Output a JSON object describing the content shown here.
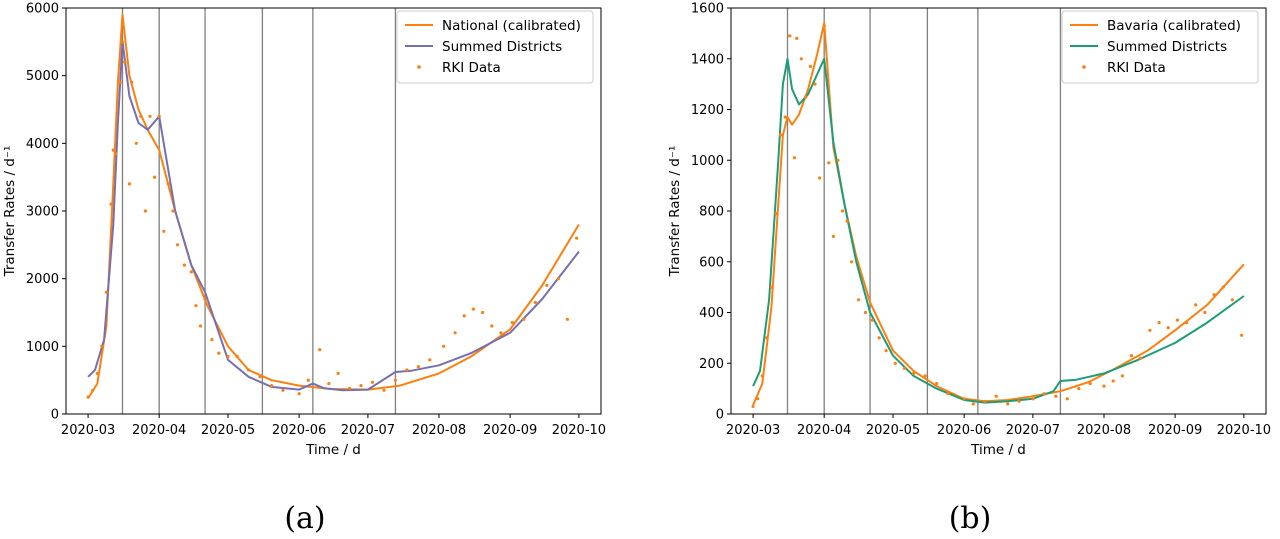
{
  "chart_data": [
    {
      "type": "line",
      "subfigure_label": "(a)",
      "xlabel": "Time / d",
      "ylabel": "Transfer Rates / d⁻¹",
      "xlim": [
        "2020-03-01",
        "2020-10-01"
      ],
      "ylim": [
        0,
        6000
      ],
      "x_ticks": [
        "2020-03-01",
        "2020-04-01",
        "2020-05-01",
        "2020-06-01",
        "2020-07-01",
        "2020-08-01",
        "2020-09-01",
        "2020-10-01"
      ],
      "x_tick_labels": [
        "2020-03",
        "2020-04",
        "2020-05",
        "2020-06",
        "2020-07",
        "2020-08",
        "2020-09",
        "2020-10"
      ],
      "y_ticks": [
        0,
        1000,
        2000,
        3000,
        4000,
        5000,
        6000
      ],
      "y_tick_labels": [
        "0",
        "1000",
        "2000",
        "3000",
        "4000",
        "5000",
        "6000"
      ],
      "vertical_lines": [
        "2020-03-16",
        "2020-04-01",
        "2020-04-21",
        "2020-05-16",
        "2020-06-07",
        "2020-07-13"
      ],
      "legend_position": "top-right",
      "series": [
        {
          "name": "National (calibrated)",
          "kind": "line",
          "color": "#ff7f0e",
          "x": [
            "2020-03-01",
            "2020-03-05",
            "2020-03-09",
            "2020-03-12",
            "2020-03-14",
            "2020-03-16",
            "2020-03-19",
            "2020-03-23",
            "2020-03-27",
            "2020-04-01",
            "2020-04-08",
            "2020-04-15",
            "2020-04-22",
            "2020-05-01",
            "2020-05-10",
            "2020-05-20",
            "2020-06-01",
            "2020-06-15",
            "2020-07-01",
            "2020-07-15",
            "2020-08-01",
            "2020-08-15",
            "2020-09-01",
            "2020-09-15",
            "2020-10-01"
          ],
          "y": [
            230,
            450,
            1300,
            3400,
            4900,
            5900,
            5000,
            4500,
            4200,
            3900,
            3000,
            2200,
            1600,
            1000,
            650,
            500,
            420,
            370,
            360,
            420,
            600,
            850,
            1250,
            1900,
            2800
          ]
        },
        {
          "name": "Summed Districts",
          "kind": "line",
          "color": "#7570b3",
          "x": [
            "2020-03-01",
            "2020-03-04",
            "2020-03-08",
            "2020-03-12",
            "2020-03-14",
            "2020-03-16",
            "2020-03-19",
            "2020-03-23",
            "2020-03-27",
            "2020-04-01",
            "2020-04-08",
            "2020-04-15",
            "2020-04-21",
            "2020-05-01",
            "2020-05-10",
            "2020-05-20",
            "2020-06-01",
            "2020-06-07",
            "2020-06-12",
            "2020-06-20",
            "2020-07-01",
            "2020-07-13",
            "2020-07-20",
            "2020-08-01",
            "2020-08-15",
            "2020-09-01",
            "2020-09-15",
            "2020-10-01"
          ],
          "y": [
            550,
            650,
            1100,
            2800,
            4300,
            5500,
            4700,
            4300,
            4200,
            4400,
            3000,
            2200,
            1800,
            800,
            550,
            400,
            360,
            450,
            380,
            350,
            360,
            620,
            640,
            720,
            900,
            1200,
            1700,
            2400
          ]
        },
        {
          "name": "RKI Data",
          "kind": "scatter",
          "color": "#ff7f0e",
          "x": [
            "2020-03-01",
            "2020-03-03",
            "2020-03-05",
            "2020-03-07",
            "2020-03-09",
            "2020-03-11",
            "2020-03-12",
            "2020-03-13",
            "2020-03-15",
            "2020-03-16",
            "2020-03-17",
            "2020-03-19",
            "2020-03-20",
            "2020-03-22",
            "2020-03-24",
            "2020-03-26",
            "2020-03-28",
            "2020-03-30",
            "2020-04-01",
            "2020-04-03",
            "2020-04-05",
            "2020-04-07",
            "2020-04-09",
            "2020-04-12",
            "2020-04-15",
            "2020-04-17",
            "2020-04-19",
            "2020-04-21",
            "2020-04-24",
            "2020-04-27",
            "2020-05-01",
            "2020-05-05",
            "2020-05-10",
            "2020-05-15",
            "2020-05-20",
            "2020-05-25",
            "2020-06-01",
            "2020-06-05",
            "2020-06-10",
            "2020-06-14",
            "2020-06-18",
            "2020-06-23",
            "2020-06-28",
            "2020-07-03",
            "2020-07-08",
            "2020-07-13",
            "2020-07-18",
            "2020-07-23",
            "2020-07-28",
            "2020-08-03",
            "2020-08-08",
            "2020-08-12",
            "2020-08-16",
            "2020-08-20",
            "2020-08-24",
            "2020-08-28",
            "2020-09-02",
            "2020-09-07",
            "2020-09-12",
            "2020-09-17",
            "2020-09-22",
            "2020-09-26",
            "2020-09-30"
          ],
          "y": [
            250,
            350,
            600,
            1000,
            1800,
            3100,
            3900,
            3850,
            4900,
            5500,
            5200,
            3400,
            4900,
            4000,
            4400,
            3000,
            4400,
            3500,
            4400,
            2700,
            3400,
            3000,
            2500,
            2200,
            2100,
            1600,
            1300,
            1700,
            1100,
            900,
            850,
            850,
            650,
            550,
            420,
            350,
            300,
            500,
            950,
            450,
            600,
            380,
            420,
            470,
            350,
            500,
            650,
            700,
            800,
            1000,
            1200,
            1450,
            1550,
            1500,
            1300,
            1200,
            1350,
            1400,
            1650,
            1900,
            2000,
            1400,
            2600
          ]
        }
      ]
    },
    {
      "type": "line",
      "subfigure_label": "(b)",
      "xlabel": "Time / d",
      "ylabel": "Transfer Rates / d⁻¹",
      "xlim": [
        "2020-03-01",
        "2020-10-01"
      ],
      "ylim": [
        0,
        1600
      ],
      "x_ticks": [
        "2020-03-01",
        "2020-04-01",
        "2020-05-01",
        "2020-06-01",
        "2020-07-01",
        "2020-08-01",
        "2020-09-01",
        "2020-10-01"
      ],
      "x_tick_labels": [
        "2020-03",
        "2020-04",
        "2020-05",
        "2020-06",
        "2020-07",
        "2020-08",
        "2020-09",
        "2020-10"
      ],
      "y_ticks": [
        0,
        200,
        400,
        600,
        800,
        1000,
        1200,
        1400,
        1600
      ],
      "y_tick_labels": [
        "0",
        "200",
        "400",
        "600",
        "800",
        "1000",
        "1200",
        "1400",
        "1600"
      ],
      "vertical_lines": [
        "2020-03-16",
        "2020-04-01",
        "2020-04-21",
        "2020-05-16",
        "2020-06-07",
        "2020-07-13"
      ],
      "legend_position": "top-right",
      "series": [
        {
          "name": "Bavaria (calibrated)",
          "kind": "line",
          "color": "#ff7f0e",
          "x": [
            "2020-03-01",
            "2020-03-05",
            "2020-03-09",
            "2020-03-12",
            "2020-03-14",
            "2020-03-16",
            "2020-03-18",
            "2020-03-21",
            "2020-03-25",
            "2020-03-29",
            "2020-04-01",
            "2020-04-05",
            "2020-04-10",
            "2020-04-15",
            "2020-04-21",
            "2020-05-01",
            "2020-05-10",
            "2020-05-20",
            "2020-06-01",
            "2020-06-10",
            "2020-06-20",
            "2020-07-01",
            "2020-07-13",
            "2020-07-25",
            "2020-08-05",
            "2020-08-20",
            "2020-09-01",
            "2020-09-15",
            "2020-10-01"
          ],
          "y": [
            35,
            120,
            420,
            830,
            1100,
            1170,
            1140,
            1180,
            1280,
            1420,
            1540,
            1050,
            820,
            620,
            440,
            250,
            170,
            110,
            60,
            50,
            55,
            70,
            90,
            125,
            175,
            250,
            330,
            430,
            590
          ]
        },
        {
          "name": "Summed Districts",
          "kind": "line",
          "color": "#1b9e77",
          "x": [
            "2020-03-01",
            "2020-03-04",
            "2020-03-08",
            "2020-03-12",
            "2020-03-14",
            "2020-03-16",
            "2020-03-18",
            "2020-03-21",
            "2020-03-25",
            "2020-03-29",
            "2020-04-01",
            "2020-04-05",
            "2020-04-10",
            "2020-04-15",
            "2020-04-21",
            "2020-05-01",
            "2020-05-10",
            "2020-05-20",
            "2020-06-01",
            "2020-06-10",
            "2020-06-20",
            "2020-07-01",
            "2020-07-10",
            "2020-07-13",
            "2020-07-20",
            "2020-08-01",
            "2020-08-15",
            "2020-09-01",
            "2020-09-15",
            "2020-10-01"
          ],
          "y": [
            110,
            170,
            450,
            1000,
            1300,
            1400,
            1280,
            1220,
            1260,
            1340,
            1400,
            1070,
            820,
            600,
            400,
            230,
            150,
            100,
            55,
            45,
            50,
            60,
            90,
            130,
            135,
            160,
            210,
            280,
            360,
            465
          ]
        },
        {
          "name": "RKI Data",
          "kind": "scatter",
          "color": "#ff7f0e",
          "x": [
            "2020-03-01",
            "2020-03-03",
            "2020-03-05",
            "2020-03-07",
            "2020-03-09",
            "2020-03-11",
            "2020-03-13",
            "2020-03-15",
            "2020-03-17",
            "2020-03-19",
            "2020-03-20",
            "2020-03-22",
            "2020-03-24",
            "2020-03-26",
            "2020-03-28",
            "2020-03-30",
            "2020-04-01",
            "2020-04-03",
            "2020-04-05",
            "2020-04-07",
            "2020-04-09",
            "2020-04-11",
            "2020-04-13",
            "2020-04-16",
            "2020-04-19",
            "2020-04-22",
            "2020-04-25",
            "2020-04-28",
            "2020-05-02",
            "2020-05-06",
            "2020-05-10",
            "2020-05-15",
            "2020-05-20",
            "2020-05-25",
            "2020-06-01",
            "2020-06-05",
            "2020-06-10",
            "2020-06-15",
            "2020-06-20",
            "2020-06-25",
            "2020-07-01",
            "2020-07-06",
            "2020-07-11",
            "2020-07-16",
            "2020-07-21",
            "2020-07-26",
            "2020-08-01",
            "2020-08-05",
            "2020-08-09",
            "2020-08-13",
            "2020-08-17",
            "2020-08-21",
            "2020-08-25",
            "2020-08-29",
            "2020-09-02",
            "2020-09-06",
            "2020-09-10",
            "2020-09-14",
            "2020-09-18",
            "2020-09-22",
            "2020-09-26",
            "2020-09-30"
          ],
          "y": [
            30,
            60,
            150,
            300,
            500,
            790,
            1100,
            1170,
            1490,
            1010,
            1480,
            1400,
            1250,
            1370,
            1300,
            930,
            1530,
            990,
            700,
            1000,
            800,
            760,
            600,
            450,
            400,
            370,
            300,
            250,
            200,
            180,
            160,
            150,
            120,
            80,
            60,
            40,
            50,
            70,
            40,
            50,
            60,
            80,
            70,
            60,
            100,
            120,
            110,
            130,
            150,
            230,
            220,
            330,
            360,
            340,
            370,
            360,
            430,
            400,
            470,
            500,
            450,
            310
          ]
        }
      ]
    }
  ]
}
